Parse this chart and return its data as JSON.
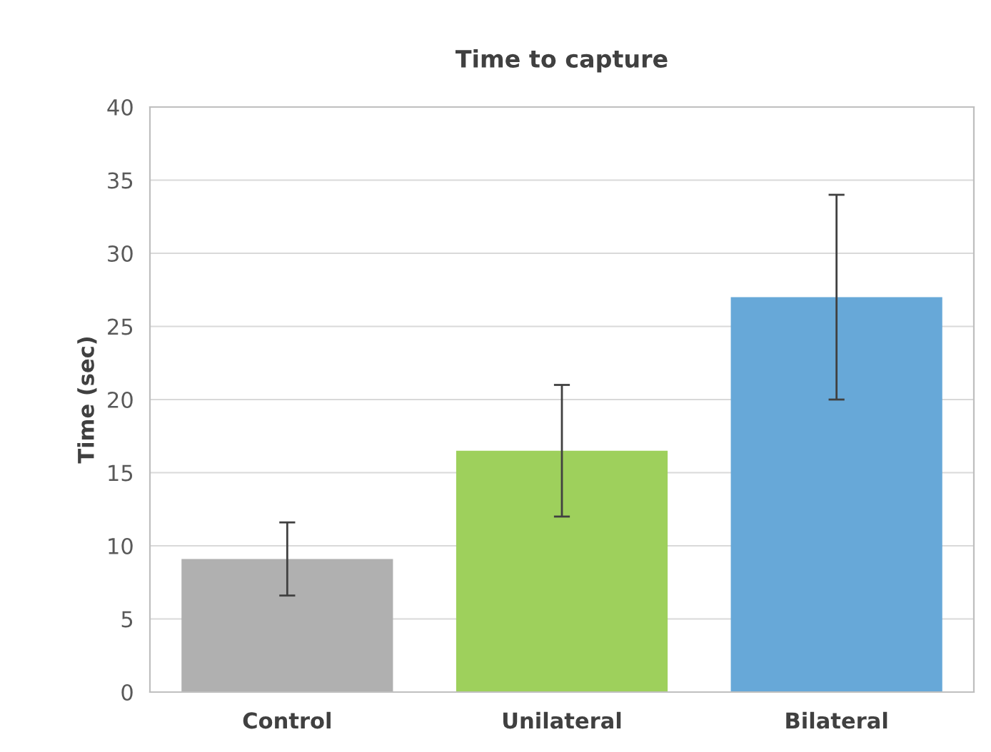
{
  "chart_data": {
    "type": "bar",
    "title": "Time to capture",
    "ylabel": "Time (sec)",
    "categories": [
      "Control",
      "Unilateral",
      "Bilateral"
    ],
    "values": [
      9.1,
      16.5,
      27
    ],
    "colors": [
      "#b0b0b0",
      "#9ed05c",
      "#67a8d8"
    ],
    "errors": [
      2.5,
      4.5,
      7
    ],
    "ylim": [
      0,
      40
    ],
    "yticks": [
      0,
      5,
      10,
      15,
      20,
      25,
      30,
      35,
      40
    ],
    "grid": "y"
  }
}
